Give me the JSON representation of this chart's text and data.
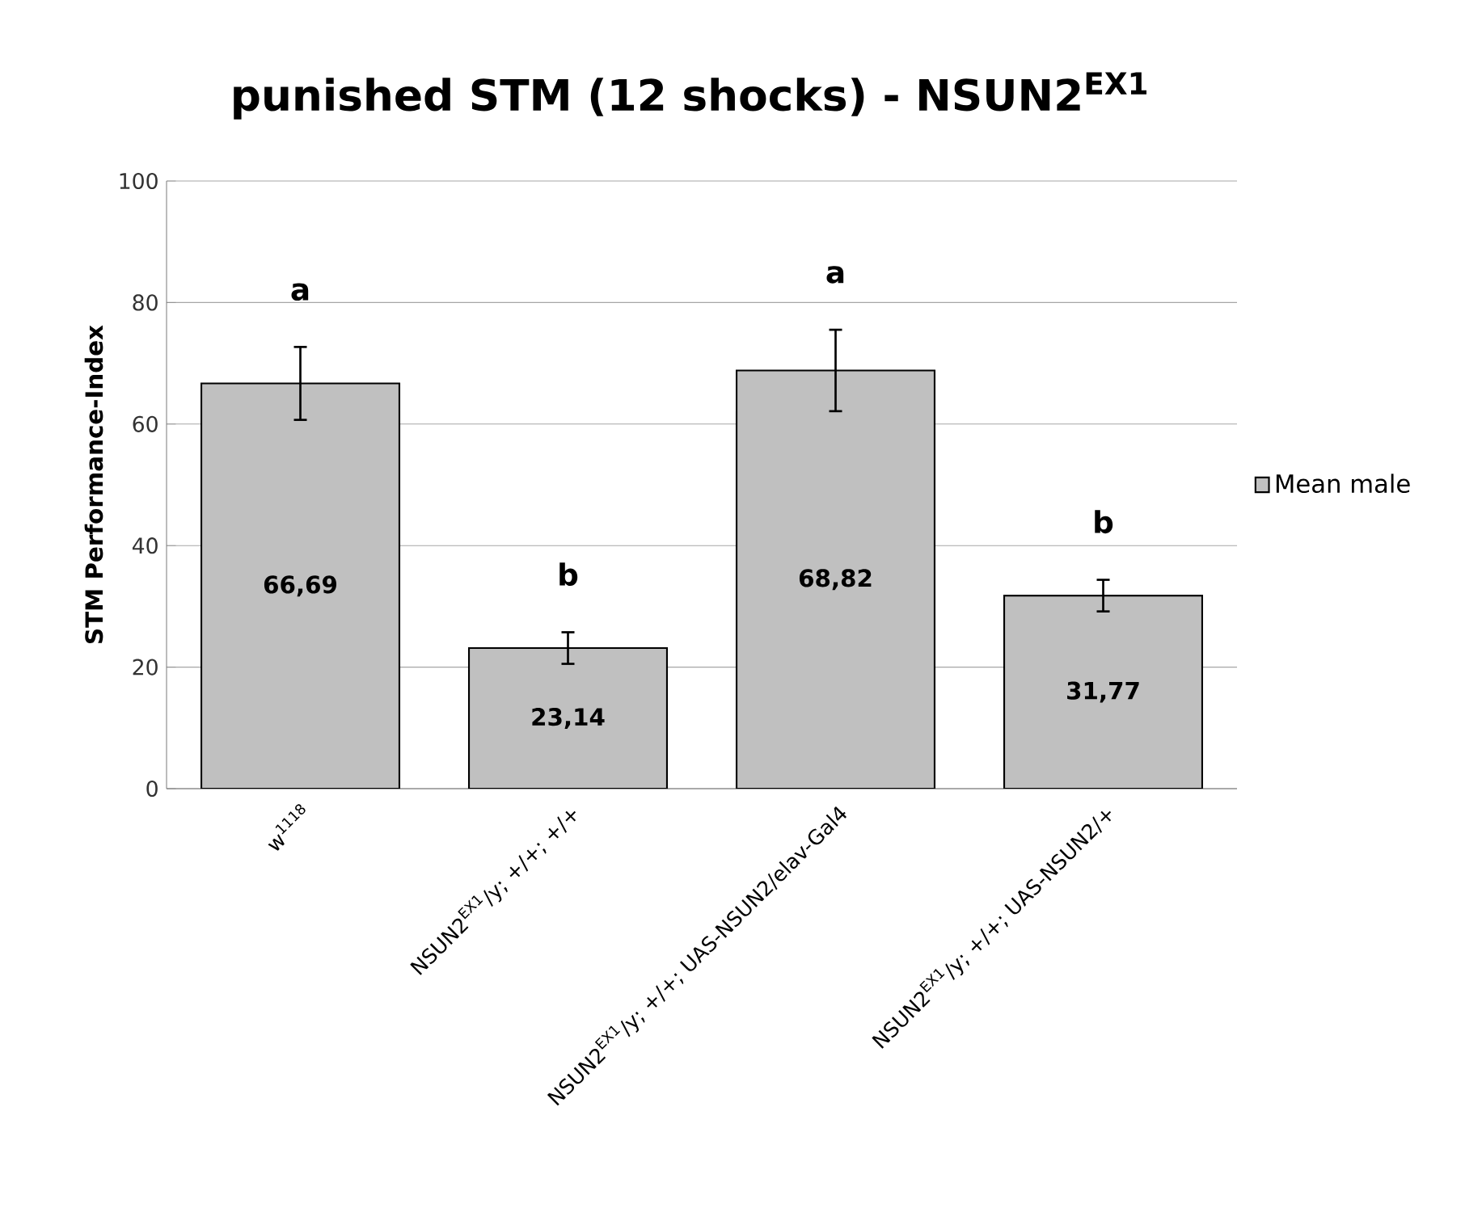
{
  "chart_data": {
    "type": "bar",
    "title": "punished STM (12 shocks) - NSUN2$^{EX1}$",
    "ylabel": "STM Performance-Index",
    "categories": [
      "w$^{1118}$",
      "NSUN2$^{EX1}$/y; +/+; +/+",
      "NSUN2$^{EX1}$/y; +/+; UAS-NSUN2/elav-Gal4",
      "NSUN2$^{EX1}$/y; +/+; UAS-NSUN2/+"
    ],
    "series": [
      {
        "name": "Mean male",
        "color": "#c0c0c0",
        "values": [
          66.69,
          23.14,
          68.82,
          31.77
        ],
        "errors": [
          6.0,
          2.6,
          6.7,
          2.6
        ],
        "value_labels": [
          "66,69",
          "23,14",
          "68,82",
          "31,77"
        ]
      }
    ],
    "ylim": [
      0,
      100
    ],
    "yticks": [
      0,
      20,
      40,
      60,
      80,
      100
    ],
    "grid": "y",
    "legend": "right",
    "annotations": [
      "a",
      "b",
      "a",
      "b"
    ]
  }
}
